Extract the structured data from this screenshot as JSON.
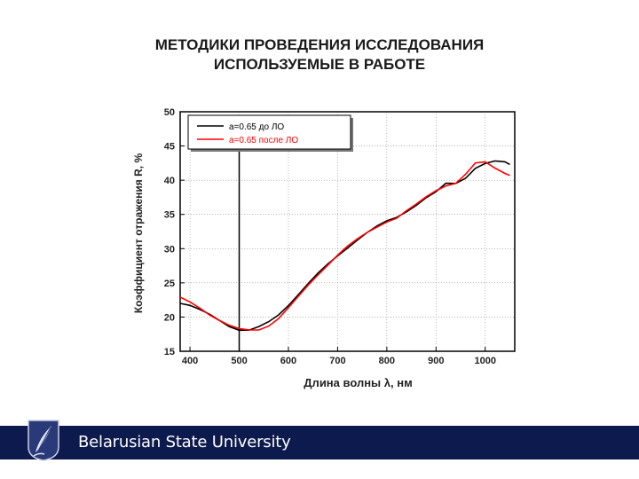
{
  "slide": {
    "title_line1": "МЕТОДИКИ ПРОВЕДЕНИЯ ИССЛЕДОВАНИЯ",
    "title_line2": "ИСПОЛЬЗУЕМЫЕ В РАБОТЕ",
    "footer_text": "Belarusian State University",
    "footer_color": "#0d1a4d"
  },
  "chart_data": {
    "type": "line",
    "title": "",
    "xlabel": "Длина волны λ, нм",
    "ylabel": "Коэффициент отражения R, %",
    "xlim": [
      380,
      1060
    ],
    "ylim": [
      15,
      50
    ],
    "xticks": [
      400,
      500,
      600,
      700,
      800,
      900,
      1000
    ],
    "yticks": [
      15,
      20,
      25,
      30,
      35,
      40,
      45,
      50
    ],
    "grid": true,
    "legend_position": "top-left",
    "marker_line_x": 500,
    "series": [
      {
        "name": "a=0.65 до ЛО",
        "color": "#000000",
        "x": [
          380,
          400,
          420,
          440,
          460,
          480,
          500,
          520,
          540,
          560,
          580,
          600,
          620,
          640,
          660,
          680,
          700,
          720,
          740,
          760,
          780,
          800,
          820,
          840,
          860,
          880,
          900,
          920,
          940,
          960,
          980,
          1000,
          1020,
          1040,
          1050
        ],
        "y": [
          22.0,
          21.6,
          21.0,
          20.4,
          19.6,
          18.7,
          18.1,
          18.0,
          18.5,
          19.3,
          20.4,
          21.8,
          23.3,
          24.8,
          26.3,
          27.7,
          29.0,
          30.2,
          31.3,
          32.3,
          33.2,
          34.0,
          34.6,
          35.5,
          36.4,
          37.4,
          38.2,
          39.3,
          39.6,
          40.6,
          42.0,
          42.4,
          42.5,
          42.4,
          42.3
        ]
      },
      {
        "name": "a=0.65 после ЛО",
        "color": "#ff0000",
        "x": [
          380,
          400,
          420,
          440,
          460,
          480,
          500,
          520,
          540,
          560,
          580,
          600,
          620,
          640,
          660,
          680,
          700,
          720,
          740,
          760,
          780,
          800,
          820,
          840,
          860,
          880,
          900,
          920,
          940,
          960,
          980,
          1000,
          1020,
          1040,
          1050
        ],
        "y": [
          22.8,
          22.2,
          21.4,
          20.4,
          19.5,
          18.7,
          18.2,
          18.1,
          18.2,
          18.8,
          19.8,
          21.3,
          22.9,
          24.6,
          26.2,
          27.7,
          29.1,
          30.3,
          31.3,
          32.3,
          33.2,
          34.0,
          34.5,
          35.5,
          36.4,
          37.5,
          38.5,
          39.5,
          39.8,
          40.8,
          42.2,
          42.4,
          41.8,
          41.3,
          41.0
        ]
      }
    ]
  }
}
